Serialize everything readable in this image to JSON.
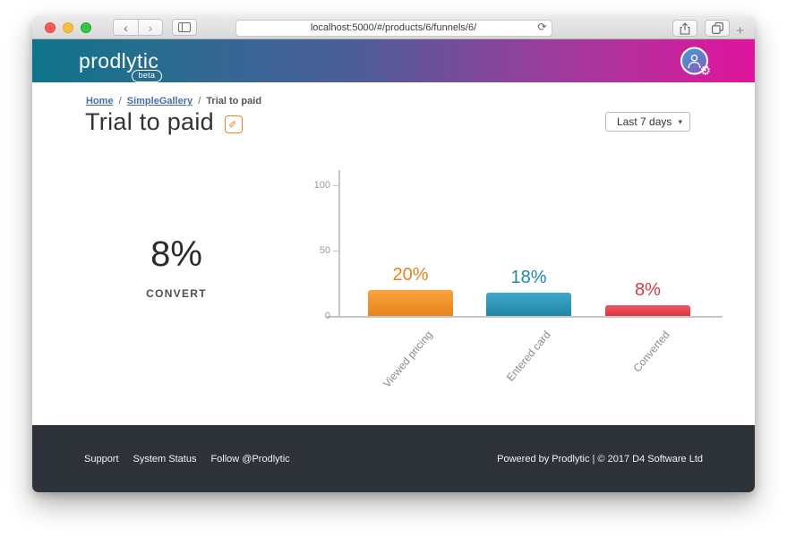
{
  "browser": {
    "url": "localhost:5000/#/products/6/funnels/6/",
    "back_icon": "‹",
    "forward_icon": "›",
    "reload_icon": "⟳",
    "new_tab_icon": "+"
  },
  "header": {
    "logo": "prodlytic",
    "badge": "beta",
    "gear_icon": "⚙",
    "colors": {
      "gradient_left": "#0e7489",
      "gradient_mid": "#4d5d99",
      "gradient_right": "#e0149c"
    }
  },
  "breadcrumb": {
    "separator": "/",
    "items": [
      {
        "label": "Home"
      },
      {
        "label": "SimpleGallery"
      },
      {
        "label": "Trial to paid"
      }
    ]
  },
  "page": {
    "title": "Trial to paid",
    "edit_icon": "✎",
    "period_dropdown": {
      "value": "Last 7 days",
      "caret": "▾"
    }
  },
  "stat": {
    "value": "8%",
    "label": "CONVERT"
  },
  "chart_data": {
    "type": "bar",
    "title": "",
    "xlabel": "",
    "ylabel": "",
    "categories": [
      "Viewed pricing",
      "Entered card",
      "Converted"
    ],
    "values": [
      20,
      18,
      8
    ],
    "data_labels": [
      "20%",
      "18%",
      "8%"
    ],
    "bar_colors": [
      {
        "top": "#f9a43f",
        "bottom": "#e8821c",
        "label": "#e8821c"
      },
      {
        "top": "#3fa9c9",
        "bottom": "#1f84a6",
        "label": "#2187a9"
      },
      {
        "top": "#ed5862",
        "bottom": "#db3440",
        "label": "#d63a45"
      }
    ],
    "ylim": [
      0,
      100
    ],
    "yticks": [
      0,
      50,
      100
    ],
    "grid": false,
    "legend": false,
    "axis_color": "#c6c6c6",
    "tick_label_color": "#999999",
    "category_label_color": "#8a8a8a"
  },
  "footer": {
    "links": [
      {
        "label": "Support"
      },
      {
        "label": "System Status"
      },
      {
        "label": "Follow @Prodlytic"
      }
    ],
    "powered": "Powered by Prodlytic | © 2017 D4 Software Ltd"
  }
}
